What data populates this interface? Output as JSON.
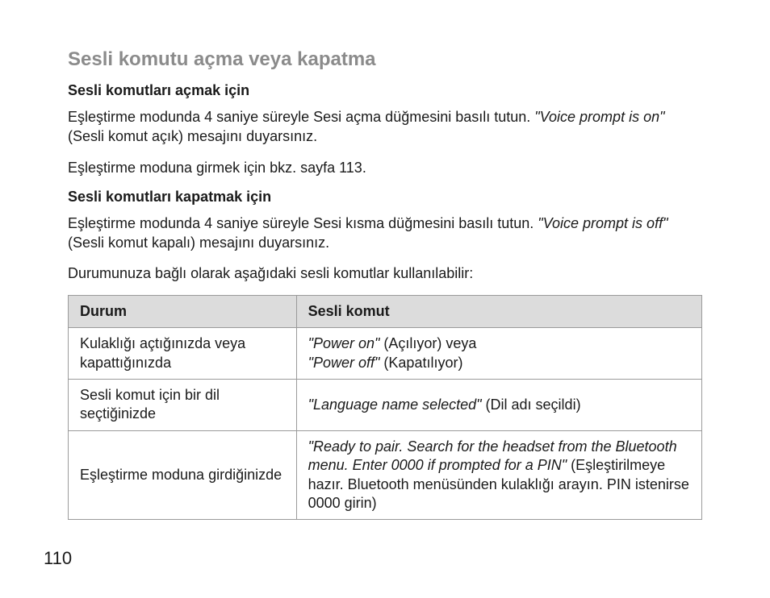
{
  "title": "Sesli komutu açma veya kapatma",
  "section1": {
    "heading": "Sesli komutları açmak için",
    "p1a": "Eşleştirme modunda 4 saniye süreyle Sesi açma düğmesini basılı tutun. ",
    "p1b": "\"Voice prompt is on\"",
    "p1c": " (Sesli komut açık) mesajını duyarsınız.",
    "p2": "Eşleştirme moduna girmek için bkz. sayfa 113."
  },
  "section2": {
    "heading": "Sesli komutları kapatmak için",
    "p1a": "Eşleştirme modunda 4 saniye süreyle Sesi kısma düğmesini basılı tutun. ",
    "p1b": "\"Voice prompt is off\"",
    "p1c": " (Sesli komut kapalı) mesajını duyarsınız.",
    "p2": "Durumunuza bağlı olarak aşağıdaki sesli komutlar kullanılabilir:"
  },
  "table": {
    "headers": {
      "state": "Durum",
      "prompt": "Sesli komut"
    },
    "rows": [
      {
        "state": "Kulaklığı açtığınızda veya kapattığınızda",
        "prompt_i1": "\"Power on\"",
        "prompt_t1": " (Açılıyor) veya ",
        "prompt_i2": "\"Power off\"",
        "prompt_t2": " (Kapatılıyor)"
      },
      {
        "state": "Sesli komut için bir dil seçtiğinizde",
        "prompt_i1": "\"Language name selected\"",
        "prompt_t1": " (Dil adı seçildi)",
        "prompt_i2": "",
        "prompt_t2": ""
      },
      {
        "state": "Eşleştirme moduna girdiğinizde",
        "prompt_i1": "\"Ready to pair. Search for the headset from the Bluetooth menu. Enter 0000 if prompted for a PIN\"",
        "prompt_t1": " (Eşleştirilmeye hazır. Bluetooth menüsünden kulaklığı arayın. PIN istenirse 0000 girin)",
        "prompt_i2": "",
        "prompt_t2": ""
      }
    ]
  },
  "pageNumber": "110"
}
